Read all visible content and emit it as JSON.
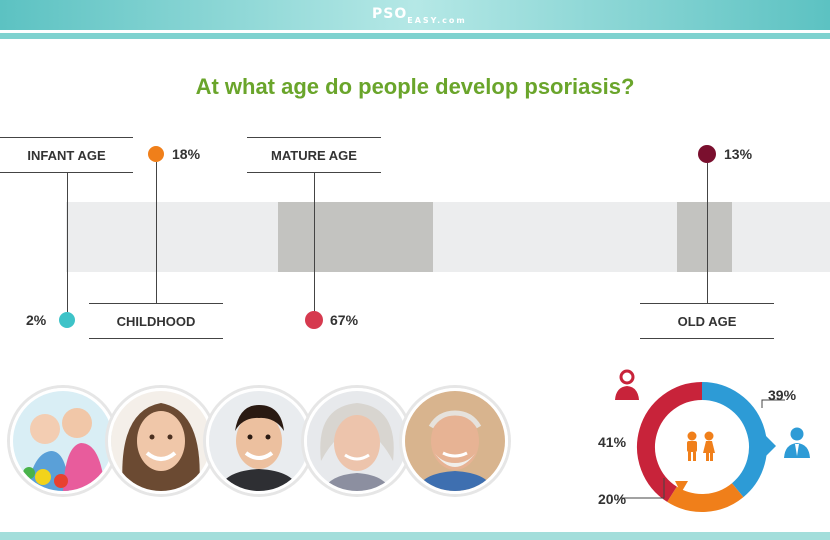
{
  "header": {
    "logo_main": "PSO",
    "logo_sub": "EASY.com"
  },
  "title": "At what age do people develop psoriasis?",
  "chart_data": [
    {
      "type": "bar",
      "title": "At what age do people develop psoriasis?",
      "categories": [
        "INFANT AGE",
        "CHILDHOOD",
        "MATURE AGE",
        "OLD AGE"
      ],
      "values": [
        2,
        18,
        67,
        13
      ],
      "value_labels": [
        "2%",
        "18%",
        "67%",
        "13%"
      ],
      "unit": "%",
      "colors": [
        "#3ec3c8",
        "#f07f1a",
        "#d63a4f",
        "#7a0f2e"
      ]
    },
    {
      "type": "pie",
      "categories": [
        "male",
        "female",
        "children"
      ],
      "values": [
        39,
        41,
        20
      ],
      "value_labels": [
        "39%",
        "41%",
        "20%"
      ],
      "colors": [
        "#2d9bd6",
        "#c8233a",
        "#f07f1a"
      ]
    }
  ],
  "icons": [
    "male-person-icon",
    "female-person-icon",
    "children-icon"
  ]
}
